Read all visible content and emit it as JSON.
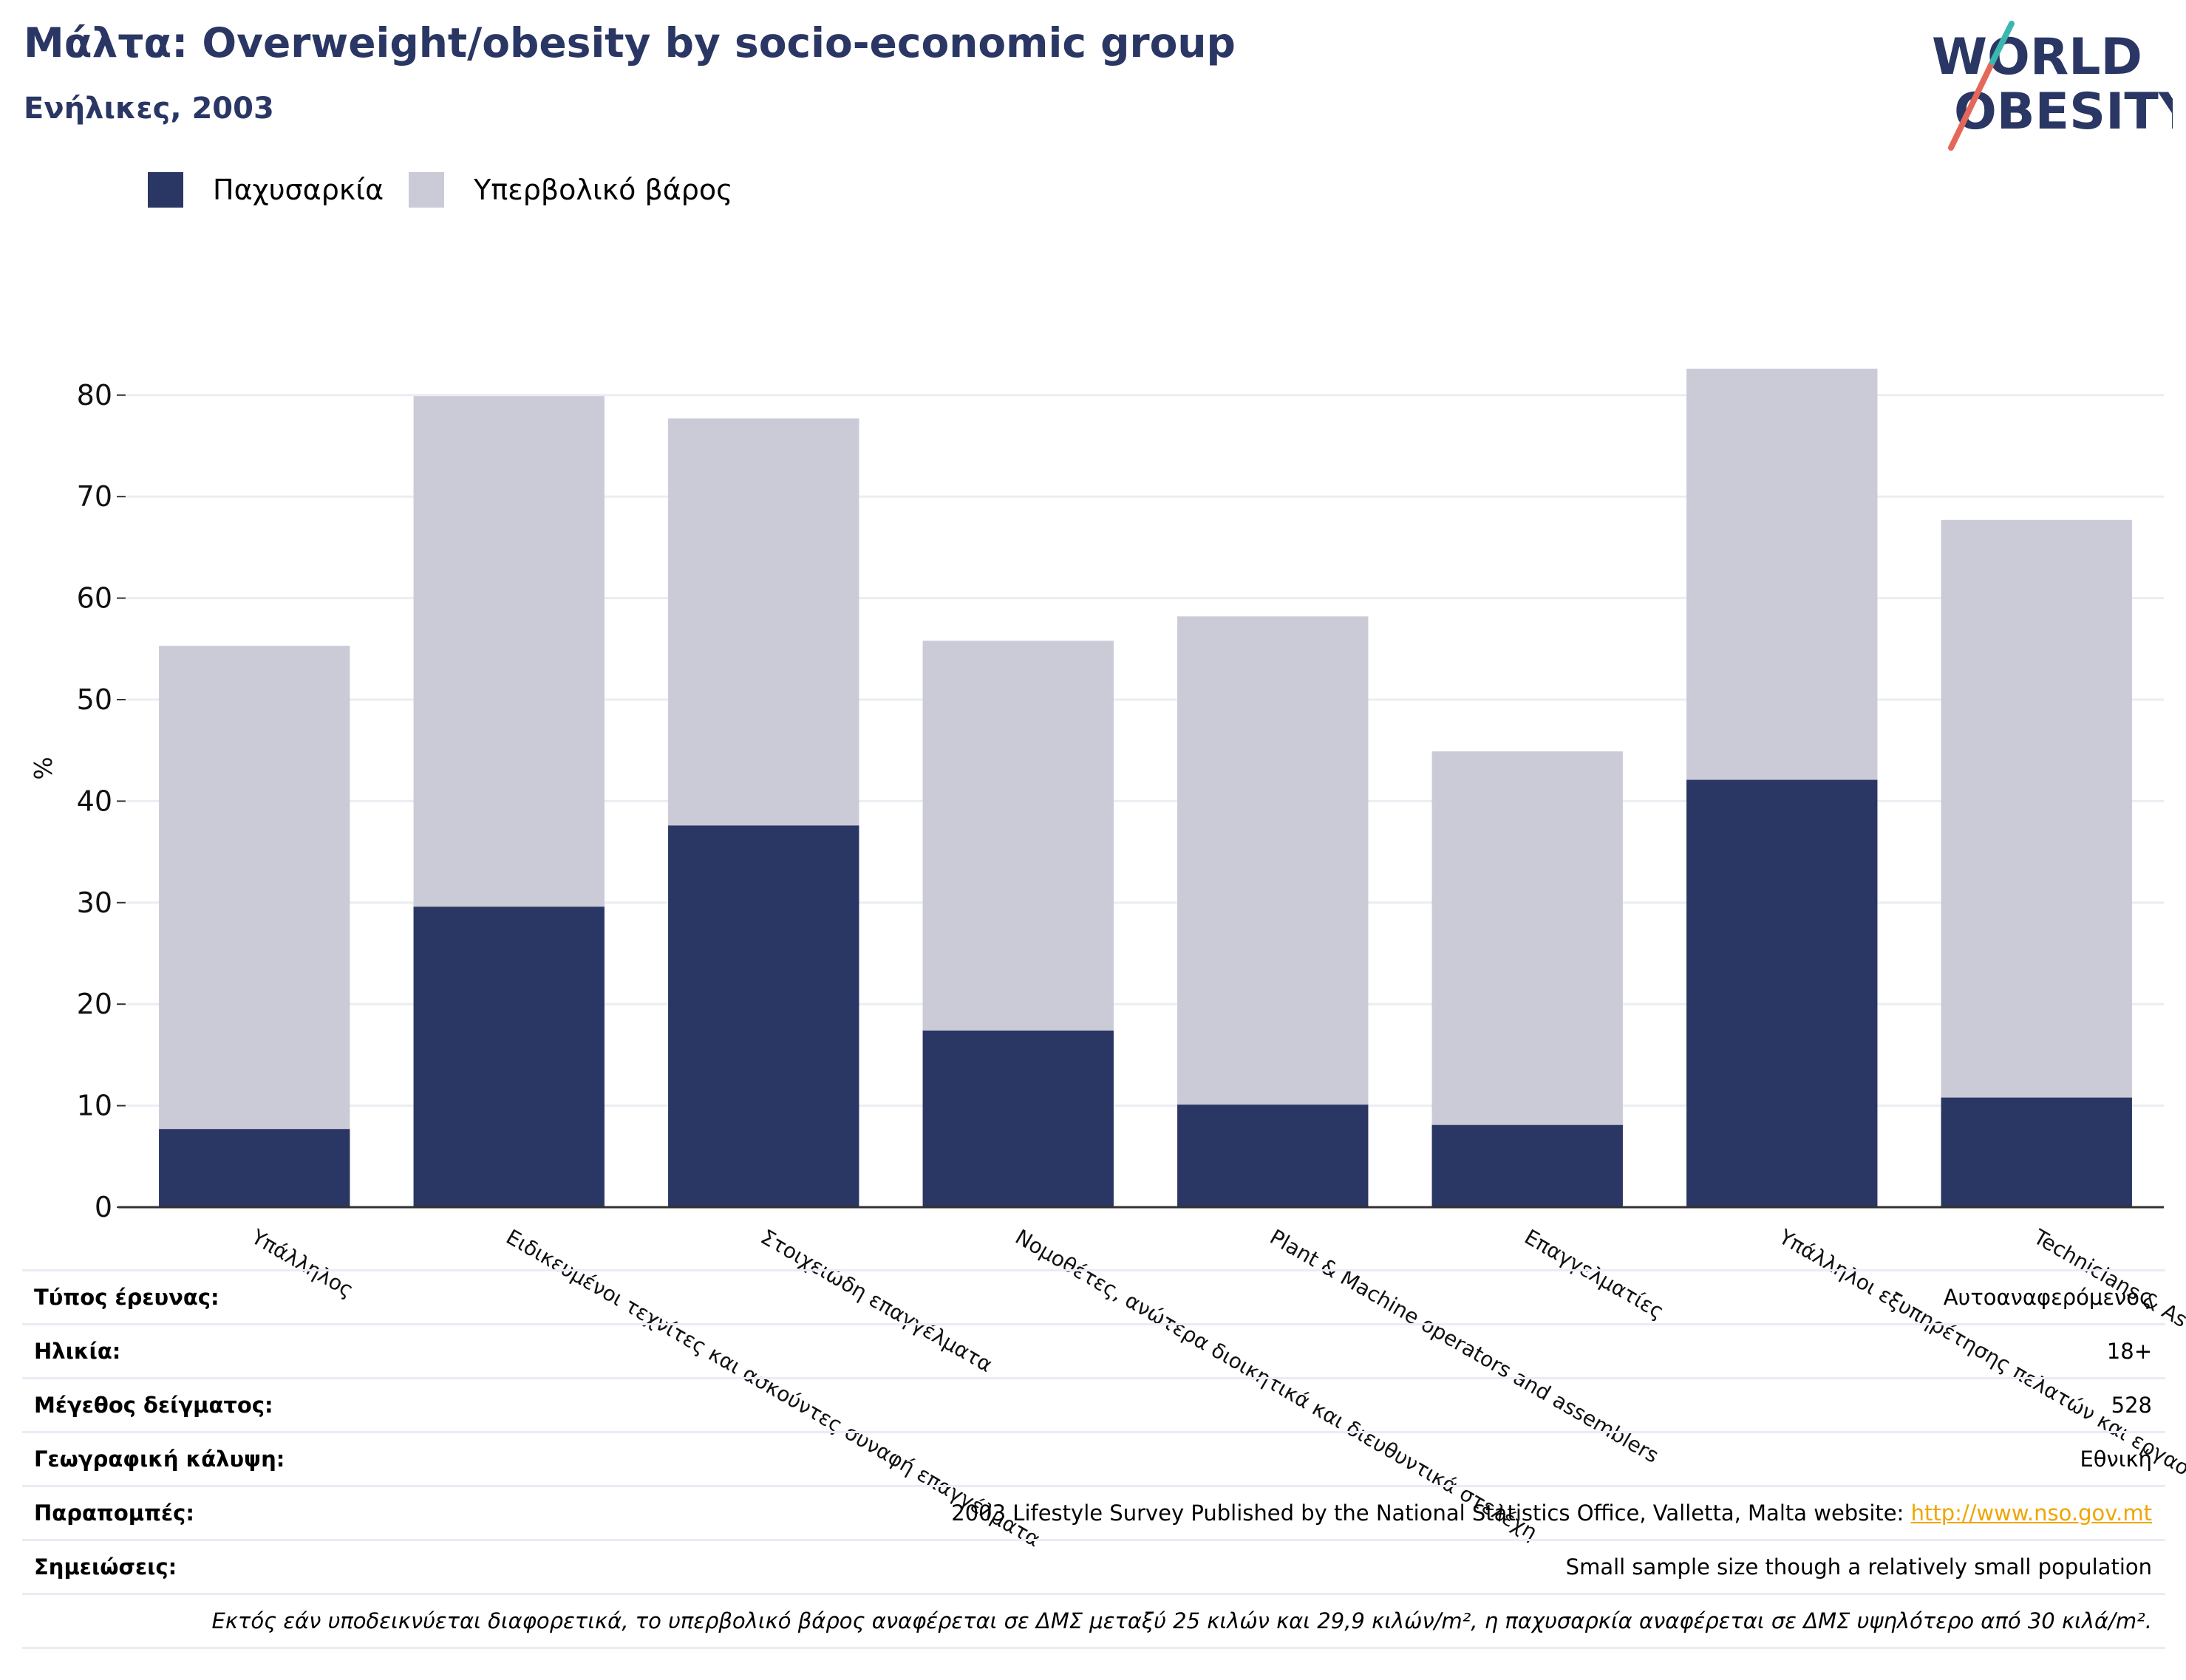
{
  "header": {
    "title": "Μάλτα: Overweight/obesity by socio-economic group",
    "subtitle": "Ενήλικες, 2003"
  },
  "logo": {
    "line1": "WORLD",
    "line2": "OBESITY"
  },
  "colors": {
    "obesity": "#2a3663",
    "overweight": "#cacbd7",
    "title": "#2a3663",
    "grid": "#ebedf3",
    "link": "#f0a500"
  },
  "chart_data": {
    "type": "bar",
    "stacked": true,
    "ylabel": "%",
    "ylim": [
      0,
      85
    ],
    "yticks": [
      0,
      10,
      20,
      30,
      40,
      50,
      60,
      70,
      80
    ],
    "grid": true,
    "legend_position": "top-left",
    "categories": [
      "Υπάλληλος",
      "Ειδικευμένοι τεχνίτες και ασκούντες συναφή επαγγέλματα",
      "Στοιχειώδη επαγγέλματα",
      "Νομοθέτες, ανώτερα διοικητικά και διευθυντικά στελέχη",
      "Plant & Machine operators and assemblers",
      "Επαγγελματίες",
      "Υπάλληλοι εξυπηρέτησης πελατών και εργασίες",
      "Technicians & As"
    ],
    "series": [
      {
        "name": "Παχυσαρκία",
        "values": [
          7.7,
          29.6,
          37.6,
          17.4,
          10.1,
          8.1,
          42.1,
          10.8
        ]
      },
      {
        "name": "Υπερβολικό βάρος",
        "values": [
          47.6,
          50.3,
          40.1,
          38.4,
          48.1,
          36.8,
          40.5,
          56.9
        ]
      }
    ]
  },
  "info": {
    "rows": [
      {
        "key": "Τύπος έρευνας:",
        "value": "Αυτοαναφερόμενος"
      },
      {
        "key": "Ηλικία:",
        "value": "18+"
      },
      {
        "key": "Μέγεθος δείγματος:",
        "value": "528"
      },
      {
        "key": "Γεωγραφική κάλυψη:",
        "value": "Εθνική"
      },
      {
        "key": "Παραπομπές:",
        "value": "2003 Lifestyle Survey Published by the National Statistics Office, Valletta, Malta website: ",
        "link": "http://www.nso.gov.mt"
      },
      {
        "key": "Σημειώσεις:",
        "value": "Small sample size though a relatively small population"
      }
    ],
    "footnote": "Εκτός εάν υποδεικνύεται διαφορετικά, το υπερβολικό βάρος αναφέρεται σε ΔΜΣ μεταξύ 25 κιλών και 29,9 κιλών/m², η παχυσαρκία αναφέρεται σε ΔΜΣ υψηλότερο από 30 κιλά/m²."
  }
}
